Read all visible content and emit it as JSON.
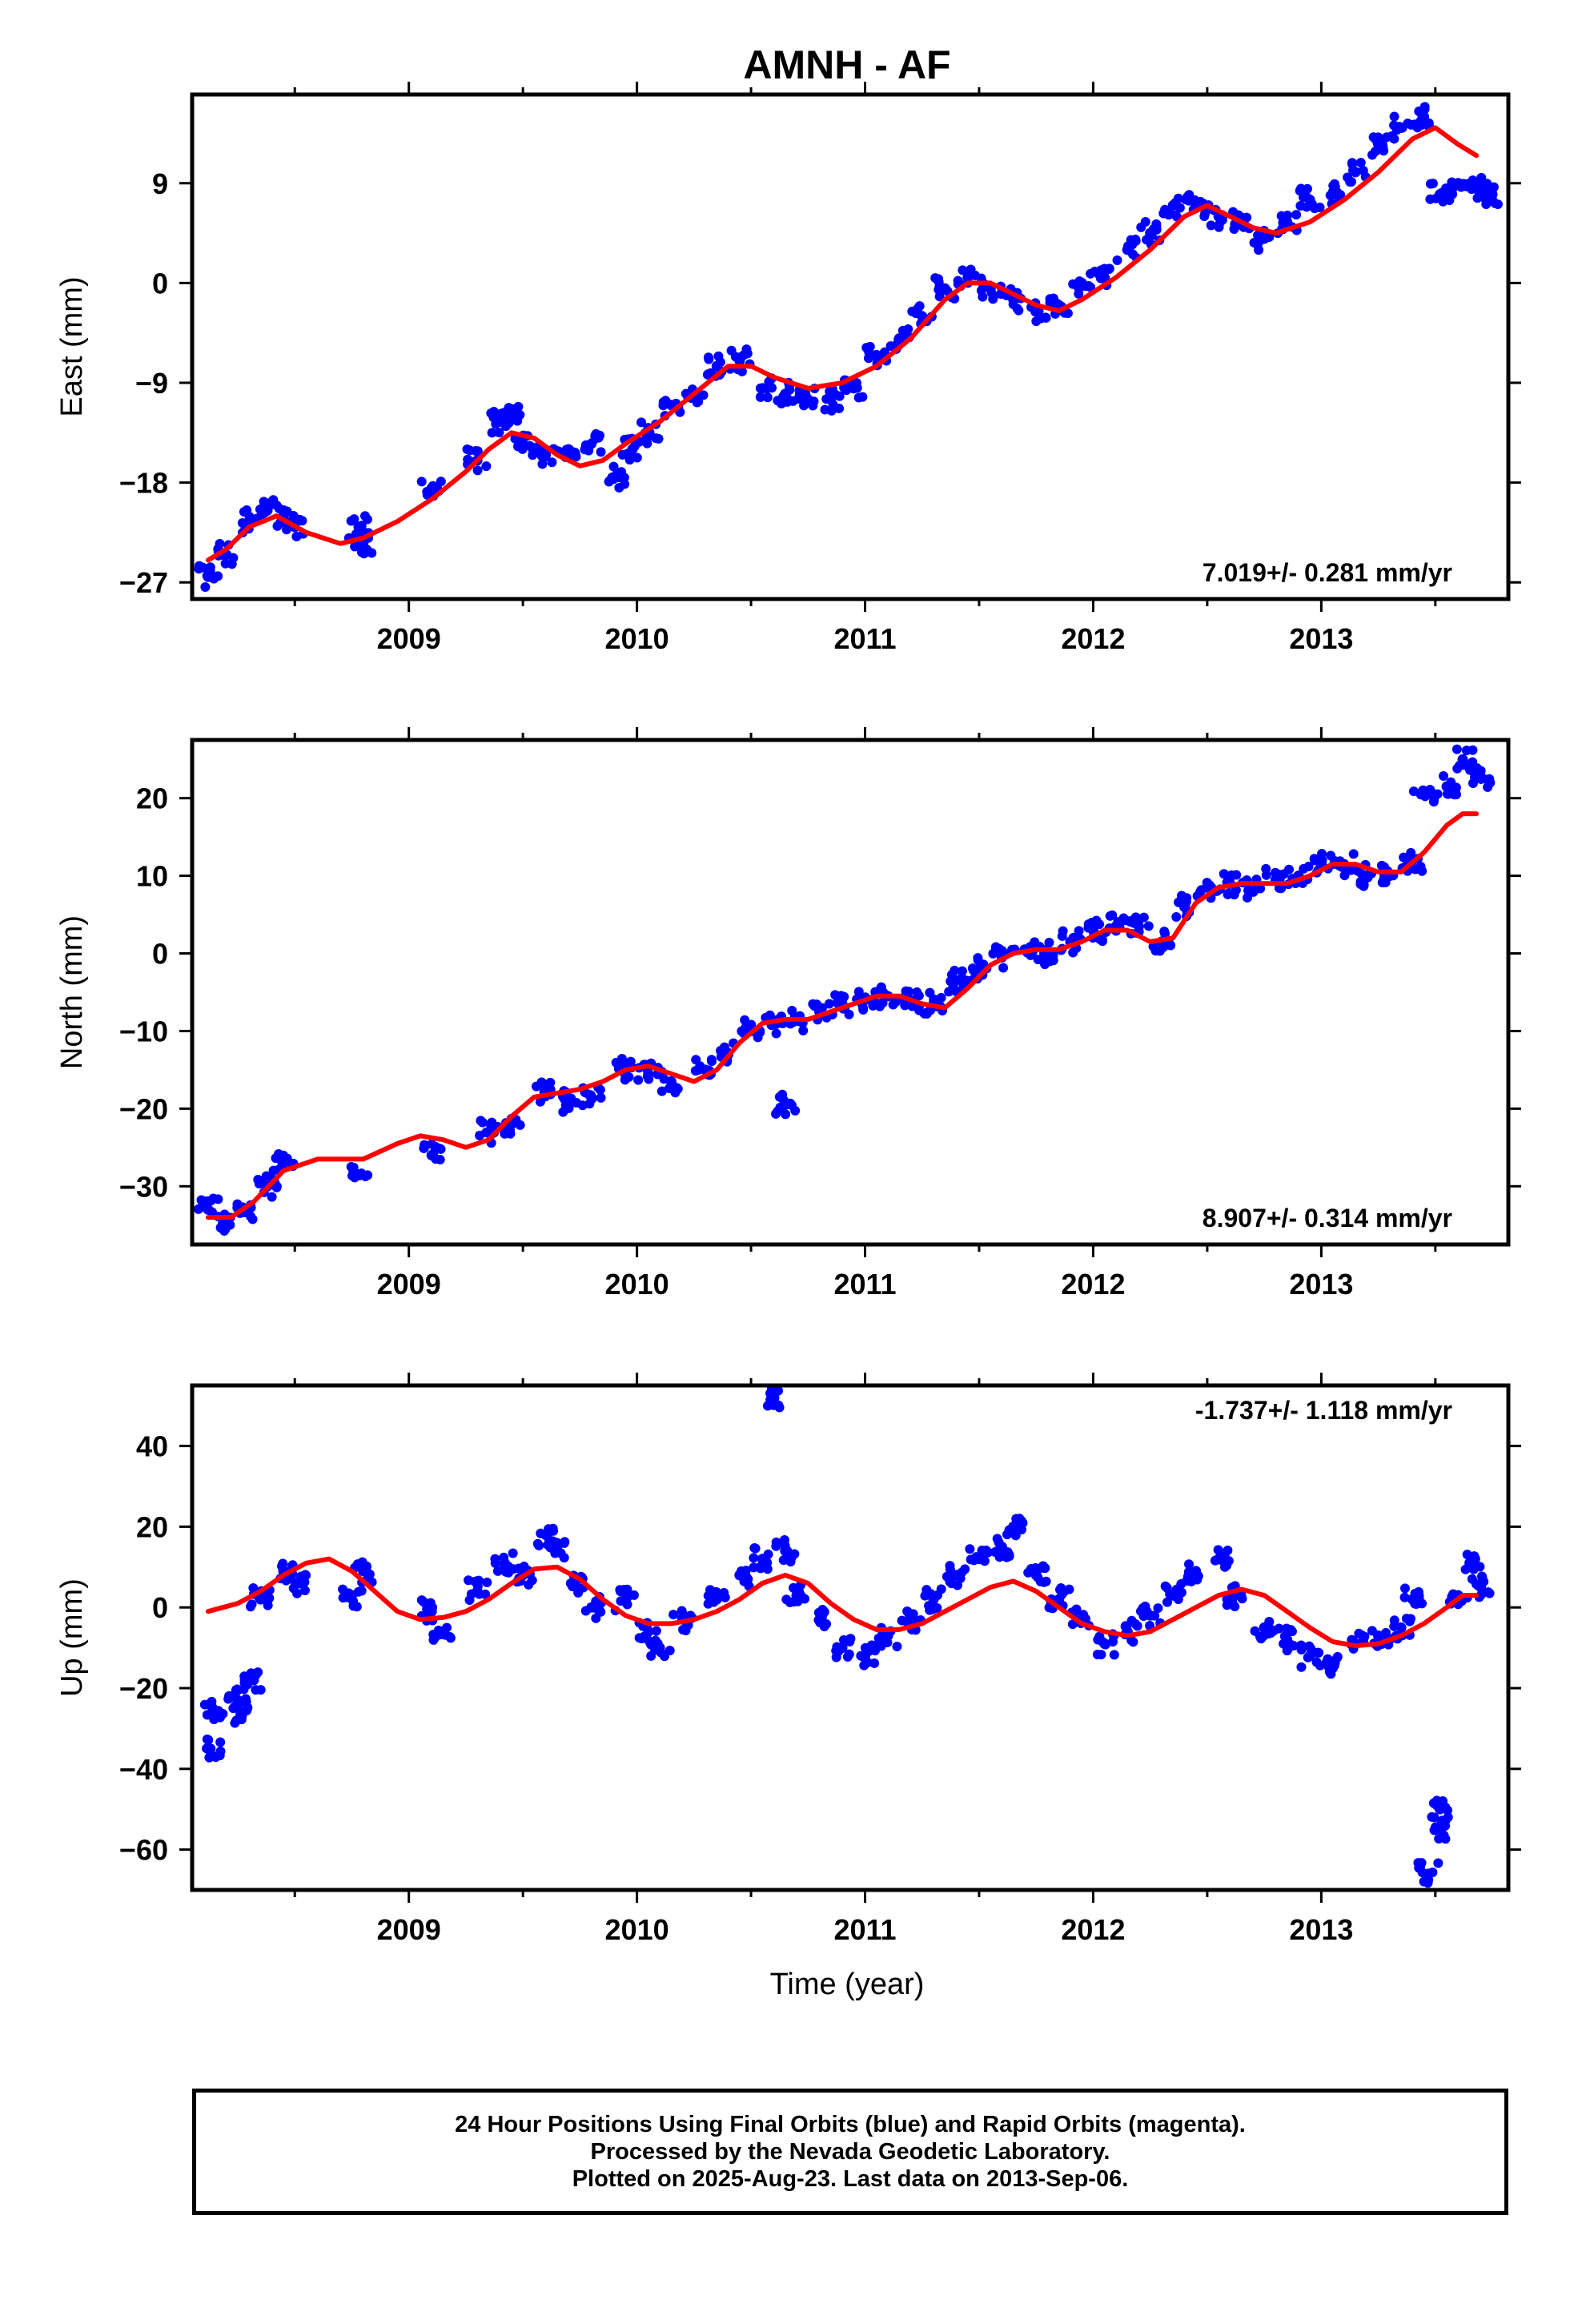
{
  "title": "AMNH - AF",
  "x_axis_label": "Time (year)",
  "footer": {
    "line1": "24 Hour Positions Using Final Orbits (blue) and Rapid Orbits (magenta).",
    "line2": "Processed by the Nevada Geodetic Laboratory.",
    "line3": "Plotted on 2025-Aug-23. Last data on 2013-Sep-06."
  },
  "colors": {
    "data_points": "#0000ff",
    "fit_curve": "#ff0000",
    "frame": "#000000"
  },
  "chart_data": [
    {
      "type": "scatter",
      "ylabel": "East (mm)",
      "rate_label": "7.019+/- 0.281 mm/yr",
      "rate_position": "bottom-right",
      "xlim": [
        2008.05,
        2013.82
      ],
      "ylim": [
        -28.5,
        17
      ],
      "x_ticks": [
        2009,
        2010,
        2011,
        2012,
        2013
      ],
      "y_ticks": [
        9,
        0,
        -9,
        -18,
        -27
      ],
      "grid": false,
      "series": [
        {
          "style": "points",
          "x": [
            2008.12,
            2008.2,
            2008.3,
            2008.38,
            2008.45,
            2008.5,
            2008.78,
            2008.8,
            2009.1,
            2009.3,
            2009.4,
            2009.45,
            2009.5,
            2009.6,
            2009.7,
            2009.8,
            2009.92,
            2009.98,
            2010.05,
            2010.15,
            2010.25,
            2010.35,
            2010.45,
            2010.55,
            2010.65,
            2010.75,
            2010.85,
            2010.95,
            2011.05,
            2011.15,
            2011.25,
            2011.35,
            2011.45,
            2011.55,
            2011.65,
            2011.75,
            2011.85,
            2011.95,
            2012.05,
            2012.15,
            2012.25,
            2012.35,
            2012.45,
            2012.55,
            2012.65,
            2012.75,
            2012.85,
            2012.95,
            2013.05,
            2013.15,
            2013.25,
            2013.35,
            2013.45,
            2013.52,
            2013.6,
            2013.68,
            2013.75
          ],
          "y": [
            -26.5,
            -24.5,
            -21.5,
            -20.5,
            -21,
            -22,
            -22,
            -23.5,
            -18.5,
            -16,
            -12.5,
            -12,
            -14.5,
            -15.5,
            -15,
            -14.5,
            -17.5,
            -15,
            -13.5,
            -11,
            -10,
            -7.5,
            -7,
            -9.5,
            -10,
            -10.5,
            -10.5,
            -9.5,
            -6.5,
            -5,
            -3,
            -0.5,
            0.5,
            -0.5,
            -1.5,
            -2.5,
            -2,
            0,
            0.5,
            3,
            4.5,
            7,
            7,
            6,
            5.5,
            4,
            5.5,
            7.5,
            8,
            10,
            12.5,
            14,
            15,
            8,
            9,
            8.5,
            8
          ]
        },
        {
          "style": "fit_line",
          "x": [
            2008.12,
            2008.2,
            2008.3,
            2008.42,
            2008.55,
            2008.7,
            2008.8,
            2008.95,
            2009.1,
            2009.25,
            2009.35,
            2009.45,
            2009.55,
            2009.65,
            2009.75,
            2009.85,
            2009.95,
            2010.1,
            2010.25,
            2010.4,
            2010.5,
            2010.6,
            2010.75,
            2010.9,
            2011.05,
            2011.2,
            2011.35,
            2011.45,
            2011.55,
            2011.65,
            2011.75,
            2011.85,
            2011.95,
            2012.1,
            2012.25,
            2012.4,
            2012.5,
            2012.6,
            2012.7,
            2012.8,
            2012.95,
            2013.1,
            2013.25,
            2013.4,
            2013.5,
            2013.6,
            2013.68
          ],
          "y": [
            -25,
            -24,
            -22,
            -21,
            -22.5,
            -23.5,
            -23,
            -21.5,
            -19.5,
            -17,
            -15,
            -13.5,
            -14,
            -15.5,
            -16.5,
            -16,
            -14.5,
            -12.5,
            -10,
            -7.5,
            -7.5,
            -8.5,
            -9.5,
            -9,
            -7.5,
            -5,
            -1.5,
            0,
            0,
            -1,
            -2,
            -2.5,
            -1.5,
            0.5,
            3,
            6,
            7,
            6,
            5,
            4.5,
            5.5,
            7.5,
            10,
            13,
            14,
            12.5,
            11.5
          ]
        }
      ]
    },
    {
      "type": "scatter",
      "ylabel": "North (mm)",
      "rate_label": "8.907+/- 0.314 mm/yr",
      "rate_position": "bottom-right",
      "xlim": [
        2008.05,
        2013.82
      ],
      "ylim": [
        -37.5,
        27.5
      ],
      "x_ticks": [
        2009,
        2010,
        2011,
        2012,
        2013
      ],
      "y_ticks": [
        20,
        10,
        0,
        -10,
        -20,
        -30
      ],
      "grid": false,
      "series": [
        {
          "style": "points",
          "x": [
            2008.12,
            2008.2,
            2008.28,
            2008.38,
            2008.45,
            2008.78,
            2009.1,
            2009.35,
            2009.45,
            2009.6,
            2009.7,
            2009.8,
            2009.95,
            2010.05,
            2010.15,
            2010.3,
            2010.4,
            2010.5,
            2010.6,
            2010.65,
            2010.7,
            2010.8,
            2010.9,
            2011.0,
            2011.1,
            2011.2,
            2011.3,
            2011.4,
            2011.5,
            2011.6,
            2011.7,
            2011.8,
            2011.9,
            2012.0,
            2012.1,
            2012.2,
            2012.3,
            2012.4,
            2012.5,
            2012.6,
            2012.7,
            2012.8,
            2012.9,
            2013.0,
            2013.1,
            2013.2,
            2013.3,
            2013.4,
            2013.45,
            2013.55,
            2013.62,
            2013.7
          ],
          "y": [
            -33,
            -34.5,
            -33,
            -30,
            -27,
            -28.5,
            -26,
            -23,
            -22,
            -18,
            -19,
            -18.5,
            -15,
            -15.5,
            -16.5,
            -15,
            -13,
            -10,
            -9,
            -19.5,
            -8.5,
            -7.5,
            -6.5,
            -6,
            -5.5,
            -6,
            -6.5,
            -3.5,
            -2,
            -0.5,
            0.5,
            0,
            1.5,
            3,
            3.5,
            3.5,
            1.5,
            6,
            8.5,
            9,
            8.5,
            9.5,
            10,
            11.5,
            11.5,
            10,
            10,
            12,
            20.5,
            21.5,
            25,
            22.5
          ]
        },
        {
          "style": "fit_line",
          "x": [
            2008.12,
            2008.22,
            2008.32,
            2008.45,
            2008.6,
            2008.8,
            2008.95,
            2009.05,
            2009.15,
            2009.25,
            2009.35,
            2009.45,
            2009.55,
            2009.65,
            2009.75,
            2009.85,
            2009.95,
            2010.05,
            2010.15,
            2010.25,
            2010.35,
            2010.45,
            2010.55,
            2010.65,
            2010.75,
            2010.85,
            2010.95,
            2011.05,
            2011.15,
            2011.25,
            2011.35,
            2011.45,
            2011.55,
            2011.65,
            2011.75,
            2011.85,
            2011.95,
            2012.05,
            2012.15,
            2012.25,
            2012.35,
            2012.45,
            2012.55,
            2012.65,
            2012.75,
            2012.85,
            2012.95,
            2013.05,
            2013.15,
            2013.25,
            2013.35,
            2013.45,
            2013.55,
            2013.62,
            2013.68
          ],
          "y": [
            -34,
            -34,
            -32,
            -28,
            -26.5,
            -26.5,
            -24.5,
            -23.5,
            -24,
            -25,
            -24,
            -21,
            -18.5,
            -18,
            -17.5,
            -16.5,
            -15,
            -14.5,
            -15.5,
            -16.5,
            -15,
            -11.5,
            -9,
            -8.5,
            -8.5,
            -7.5,
            -6.5,
            -5.5,
            -5.5,
            -6.5,
            -7,
            -4.5,
            -1.5,
            0,
            0.5,
            0.5,
            1.5,
            3,
            3,
            1.5,
            2,
            6.5,
            8.5,
            9,
            9,
            9,
            10,
            11.5,
            11.5,
            10.5,
            10.5,
            13,
            16.5,
            18,
            18
          ]
        }
      ]
    },
    {
      "type": "scatter",
      "ylabel": "Up (mm)",
      "rate_label": "-1.737+/- 1.118 mm/yr",
      "rate_position": "top-right",
      "xlim": [
        2008.05,
        2013.82
      ],
      "ylim": [
        -70,
        55
      ],
      "x_ticks": [
        2009,
        2010,
        2011,
        2012,
        2013
      ],
      "y_ticks": [
        40,
        20,
        0,
        -20,
        -40,
        -60
      ],
      "grid": false,
      "series": [
        {
          "style": "points",
          "x": [
            2008.13,
            2008.14,
            2008.25,
            2008.27,
            2008.32,
            2008.35,
            2008.45,
            2008.52,
            2008.75,
            2008.8,
            2009.1,
            2009.15,
            2009.3,
            2009.42,
            2009.5,
            2009.6,
            2009.65,
            2009.72,
            2009.8,
            2009.95,
            2010.05,
            2010.1,
            2010.2,
            2010.35,
            2010.45,
            2010.55,
            2010.6,
            2010.65,
            2010.7,
            2010.8,
            2010.9,
            2011.0,
            2011.1,
            2011.2,
            2011.3,
            2011.4,
            2011.5,
            2011.6,
            2011.65,
            2011.75,
            2011.85,
            2011.95,
            2012.05,
            2012.15,
            2012.25,
            2012.35,
            2012.45,
            2012.55,
            2012.62,
            2012.75,
            2012.85,
            2012.95,
            2013.05,
            2013.15,
            2013.25,
            2013.35,
            2013.4,
            2013.47,
            2013.5,
            2013.52,
            2013.6,
            2013.65,
            2013.7
          ],
          "y": [
            -35,
            -25,
            -23,
            -26,
            -18,
            2,
            9,
            6,
            3,
            9,
            -1,
            -6,
            4,
            11,
            8,
            18,
            15,
            6,
            0,
            2,
            -6,
            -10,
            -3,
            2,
            8,
            12,
            52,
            14,
            3,
            -3,
            -10,
            -12,
            -7,
            -3,
            2,
            8,
            12,
            15,
            20,
            8,
            2,
            -3,
            -9,
            -6,
            -2,
            3,
            9,
            12,
            3,
            -5,
            -8,
            -12,
            -15,
            -9,
            -7,
            -5,
            2,
            -66,
            -55,
            -50,
            3,
            11,
            5
          ]
        },
        {
          "style": "fit_line",
          "x": [
            2008.12,
            2008.25,
            2008.35,
            2008.45,
            2008.55,
            2008.65,
            2008.75,
            2008.85,
            2008.95,
            2009.05,
            2009.15,
            2009.25,
            2009.35,
            2009.45,
            2009.55,
            2009.65,
            2009.75,
            2009.85,
            2009.95,
            2010.05,
            2010.15,
            2010.25,
            2010.35,
            2010.45,
            2010.55,
            2010.65,
            2010.75,
            2010.85,
            2010.95,
            2011.05,
            2011.15,
            2011.25,
            2011.35,
            2011.45,
            2011.55,
            2011.65,
            2011.75,
            2011.85,
            2011.95,
            2012.05,
            2012.15,
            2012.25,
            2012.35,
            2012.45,
            2012.55,
            2012.65,
            2012.75,
            2012.85,
            2012.95,
            2013.05,
            2013.15,
            2013.25,
            2013.35,
            2013.45,
            2013.55,
            2013.62,
            2013.68
          ],
          "y": [
            -1,
            1,
            4,
            8,
            11,
            12,
            9,
            4,
            -1,
            -3,
            -2.5,
            -1,
            2,
            6,
            9.5,
            10,
            7,
            2,
            -2,
            -4,
            -4,
            -3,
            -1,
            2,
            6,
            8,
            6,
            1,
            -3,
            -5.5,
            -5.5,
            -4,
            -1,
            2,
            5,
            6.5,
            4,
            0,
            -4,
            -6,
            -7,
            -6,
            -3,
            0,
            3,
            4.5,
            3,
            -1,
            -5,
            -8.5,
            -9.5,
            -9,
            -7,
            -4,
            0,
            3,
            3
          ]
        }
      ]
    }
  ]
}
